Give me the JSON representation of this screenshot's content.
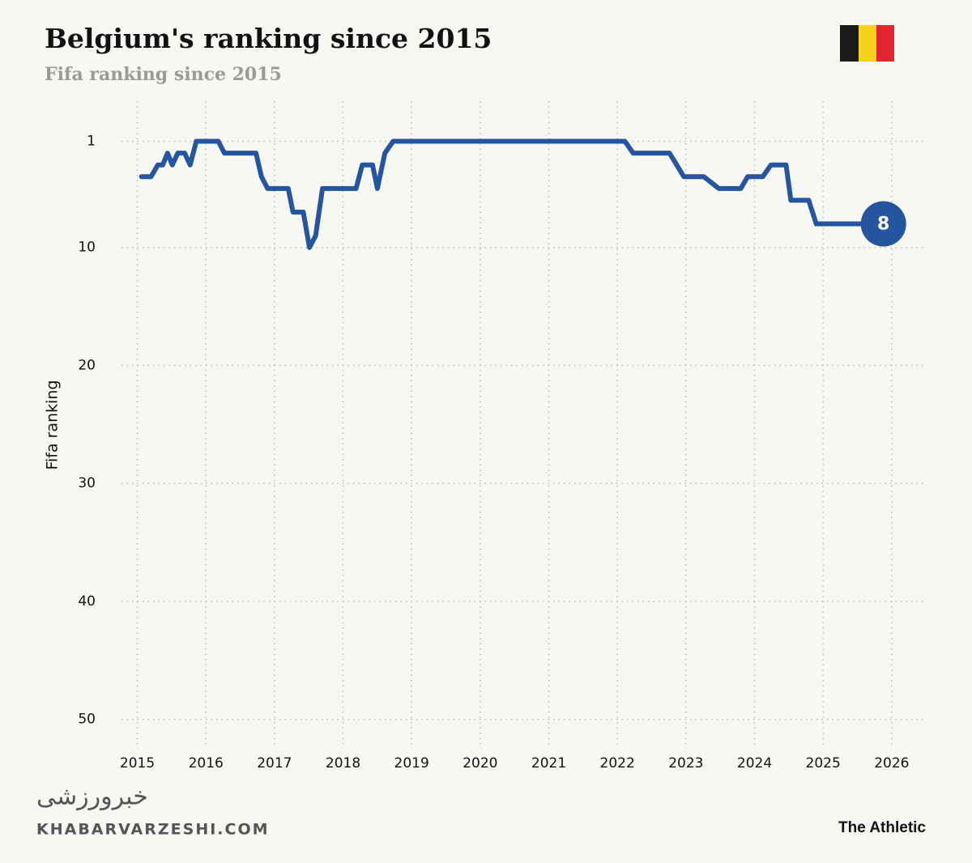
{
  "chart_data": {
    "type": "line",
    "title": "Belgium's ranking since 2015",
    "subtitle": "Fifa ranking since 2015",
    "y_label": "Fifa ranking",
    "source": "The Athletic",
    "watermark": "KHABARVARZESHI.COM",
    "watermark_logo": "خبرورزشی",
    "color": "#2655a0",
    "grid": true,
    "y_inverted": true,
    "xlim": [
      2014.97,
      2026.25
    ],
    "ylim": [
      -2.4,
      52.5
    ],
    "xticks": [
      2015,
      2016,
      2017,
      2018,
      2019,
      2020,
      2021,
      2022,
      2023,
      2024,
      2025,
      2026
    ],
    "yticks": [
      1,
      10,
      20,
      30,
      40,
      50
    ],
    "x": [
      2015.06,
      2015.2,
      2015.3,
      2015.37,
      2015.44,
      2015.51,
      2015.59,
      2015.69,
      2015.77,
      2015.86,
      2016.18,
      2016.27,
      2016.73,
      2016.81,
      2016.9,
      2017.2,
      2017.27,
      2017.42,
      2017.51,
      2017.6,
      2017.7,
      2018.19,
      2018.28,
      2018.43,
      2018.5,
      2018.61,
      2018.73,
      2022.11,
      2022.23,
      2022.76,
      2022.97,
      2023.26,
      2023.48,
      2023.8,
      2023.9,
      2024.12,
      2024.24,
      2024.46,
      2024.53,
      2024.79,
      2024.9,
      2025.88
    ],
    "values": [
      4,
      4,
      3,
      3,
      2,
      3,
      2,
      2,
      3,
      1,
      1,
      2,
      2,
      4,
      5,
      5,
      7,
      7,
      10,
      9,
      5,
      5,
      3,
      3,
      5,
      2,
      1,
      1,
      2,
      2,
      4,
      4,
      5,
      5,
      4,
      4,
      3,
      3,
      6,
      6,
      8,
      8
    ]
  }
}
